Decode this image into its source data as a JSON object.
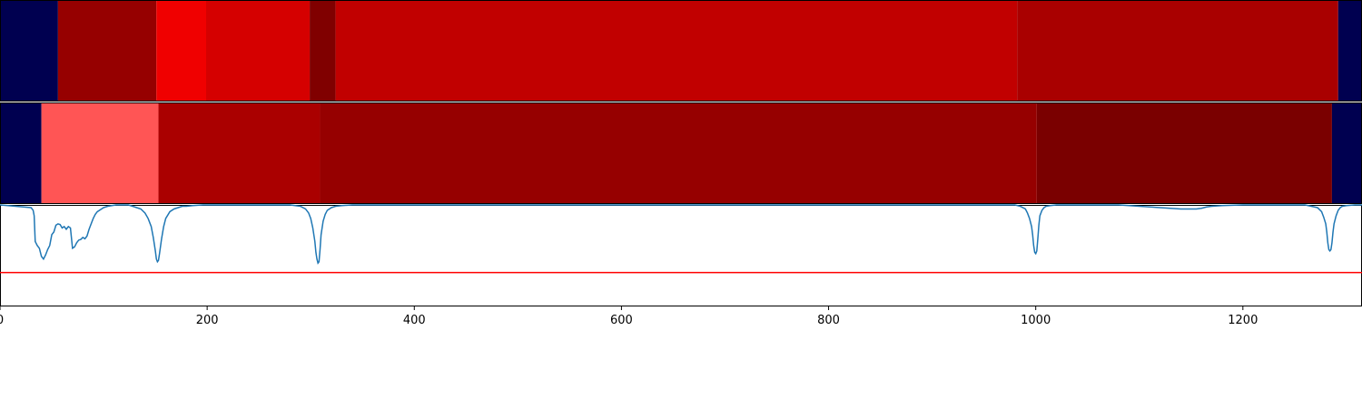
{
  "chart_data": {
    "type": "heatmap",
    "x_range": [
      0,
      1315
    ],
    "x_ticks": [
      0,
      200,
      400,
      600,
      800,
      1000,
      1200
    ],
    "x_tick_labels": [
      "0",
      "200",
      "400",
      "600",
      "800",
      "1000",
      "1200"
    ],
    "grid": false,
    "tracks": [
      {
        "type": "segments",
        "segments": [
          {
            "start": 0,
            "end": 56,
            "color": "#000050"
          },
          {
            "start": 56,
            "end": 151,
            "color": "#960000"
          },
          {
            "start": 151,
            "end": 199,
            "color": "#f00000"
          },
          {
            "start": 199,
            "end": 299,
            "color": "#d50000"
          },
          {
            "start": 299,
            "end": 324,
            "color": "#800000"
          },
          {
            "start": 324,
            "end": 982,
            "color": "#c10000"
          },
          {
            "start": 982,
            "end": 1292,
            "color": "#a90000"
          },
          {
            "start": 1292,
            "end": 1315,
            "color": "#000050"
          }
        ]
      },
      {
        "type": "segments",
        "segments": [
          {
            "start": 0,
            "end": 40,
            "color": "#000050"
          },
          {
            "start": 40,
            "end": 153,
            "color": "#ff5555"
          },
          {
            "start": 153,
            "end": 309,
            "color": "#aa0000"
          },
          {
            "start": 309,
            "end": 1001,
            "color": "#960000"
          },
          {
            "start": 1001,
            "end": 1286,
            "color": "#7a0000"
          },
          {
            "start": 1286,
            "end": 1315,
            "color": "#000050"
          }
        ]
      },
      {
        "type": "line",
        "ylim": [
          -0.75,
          0.0
        ],
        "series_color": "#1f77b4",
        "threshold": -0.5,
        "threshold_color": "#ff0000",
        "x": [
          0,
          30,
          32,
          33,
          34,
          36,
          38,
          40,
          42,
          44,
          46,
          48,
          50,
          52,
          54,
          56,
          58,
          60,
          62,
          64,
          66,
          68,
          70,
          72,
          74,
          76,
          78,
          80,
          82,
          84,
          86,
          88,
          90,
          92,
          94,
          96,
          98,
          100,
          104,
          108,
          112,
          116,
          120,
          124,
          128,
          132,
          136,
          140,
          143,
          146,
          148,
          150,
          151,
          152,
          153,
          154,
          156,
          158,
          160,
          164,
          168,
          172,
          176,
          180,
          186,
          196,
          210,
          250,
          280,
          290,
          295,
          298,
          300,
          302,
          304,
          305,
          306,
          307,
          308,
          309,
          310,
          312,
          314,
          316,
          318,
          320,
          324,
          330,
          340,
          400,
          600,
          900,
          980,
          985,
          990,
          992,
          994,
          996,
          997,
          998,
          999,
          1000,
          1001,
          1002,
          1003,
          1004,
          1006,
          1008,
          1010,
          1014,
          1020,
          1040,
          1060,
          1080,
          1100,
          1110,
          1120,
          1130,
          1140,
          1145,
          1150,
          1155,
          1160,
          1165,
          1170,
          1180,
          1200,
          1220,
          1240,
          1260,
          1272,
          1276,
          1278,
          1280,
          1281,
          1282,
          1283,
          1284,
          1285,
          1286,
          1287,
          1288,
          1290,
          1292,
          1294,
          1296,
          1300,
          1308,
          1315
        ],
        "y": [
          0.0,
          -0.02,
          -0.04,
          -0.08,
          -0.27,
          -0.3,
          -0.32,
          -0.38,
          -0.4,
          -0.37,
          -0.33,
          -0.3,
          -0.22,
          -0.2,
          -0.15,
          -0.14,
          -0.145,
          -0.17,
          -0.16,
          -0.18,
          -0.16,
          -0.17,
          -0.32,
          -0.31,
          -0.28,
          -0.26,
          -0.255,
          -0.24,
          -0.25,
          -0.23,
          -0.18,
          -0.14,
          -0.1,
          -0.07,
          -0.05,
          -0.04,
          -0.03,
          -0.02,
          -0.01,
          -0.005,
          0.0,
          0.0,
          0.0,
          0.0,
          -0.01,
          -0.02,
          -0.03,
          -0.06,
          -0.1,
          -0.16,
          -0.24,
          -0.34,
          -0.4,
          -0.42,
          -0.41,
          -0.36,
          -0.25,
          -0.16,
          -0.1,
          -0.05,
          -0.03,
          -0.02,
          -0.01,
          -0.01,
          -0.005,
          0.0,
          0.0,
          0.0,
          0.0,
          -0.01,
          -0.03,
          -0.06,
          -0.1,
          -0.17,
          -0.27,
          -0.35,
          -0.4,
          -0.43,
          -0.42,
          -0.33,
          -0.22,
          -0.12,
          -0.07,
          -0.04,
          -0.03,
          -0.02,
          -0.01,
          -0.005,
          0.0,
          0.0,
          0.0,
          0.0,
          0.0,
          -0.01,
          -0.03,
          -0.06,
          -0.1,
          -0.16,
          -0.22,
          -0.3,
          -0.35,
          -0.36,
          -0.34,
          -0.25,
          -0.15,
          -0.08,
          -0.04,
          -0.02,
          -0.01,
          -0.005,
          0.0,
          0.0,
          0.0,
          0.0,
          -0.01,
          -0.015,
          -0.02,
          -0.025,
          -0.03,
          -0.03,
          -0.03,
          -0.03,
          -0.025,
          -0.015,
          -0.01,
          -0.005,
          0.0,
          0.0,
          0.0,
          0.0,
          -0.02,
          -0.05,
          -0.09,
          -0.14,
          -0.2,
          -0.28,
          -0.33,
          -0.34,
          -0.33,
          -0.28,
          -0.2,
          -0.14,
          -0.08,
          -0.04,
          -0.02,
          -0.01,
          -0.005,
          0.0,
          0.0
        ]
      }
    ]
  }
}
